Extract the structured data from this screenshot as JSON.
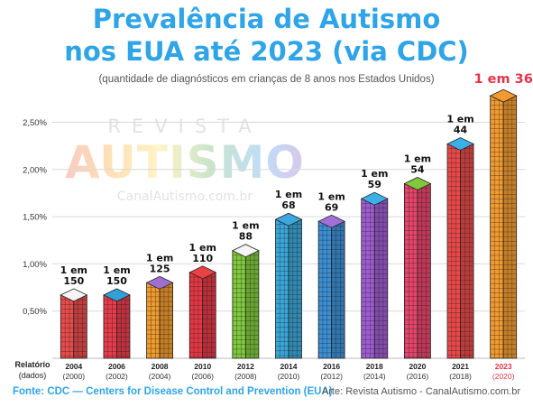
{
  "header": {
    "title_line1": "Prevalência de Autismo",
    "title_line2": "nos EUA até 2023 (via CDC)",
    "subtitle": "(quantidade de diagnósticos em crianças de 8 anos nos Estados Unidos)"
  },
  "watermark": {
    "top": "REVISTA",
    "logo": "AUTISMO",
    "url": "CanalAutismo.com.br"
  },
  "row_label": {
    "line1": "Relatório",
    "line2": "(dados)"
  },
  "footer": {
    "source": "Fonte: CDC — Centers for Disease Control and Prevention (EUA)",
    "credit": "Arte: Revista Autismo - CanalAutismo.com.br"
  },
  "colors": {
    "title": "#2fa4e7",
    "highlight": "#e5334b"
  },
  "chart_data": {
    "type": "bar",
    "categories": [
      "2004",
      "2006",
      "2008",
      "2010",
      "2012",
      "2014",
      "2016",
      "2018",
      "2020",
      "2021",
      "2023"
    ],
    "data_years": [
      "(2000)",
      "(2002)",
      "(2004)",
      "(2006)",
      "(2008)",
      "(2010)",
      "(2012)",
      "(2014)",
      "(2016)",
      "(2018)",
      "(2020)"
    ],
    "value_labels": [
      "1 em\n150",
      "1 em\n150",
      "1 em\n125",
      "1 em\n110",
      "1 em\n88",
      "1 em\n68",
      "1 em\n69",
      "1 em\n59",
      "1 em\n54",
      "1 em\n44",
      "1 em 36"
    ],
    "values": [
      0.67,
      0.67,
      0.8,
      0.91,
      1.14,
      1.47,
      1.45,
      1.69,
      1.85,
      2.27,
      2.78
    ],
    "bar_colors": [
      "#e94a4a",
      "#e83a4a",
      "#f09a2c",
      "#e43744",
      "#7fc93b",
      "#39a7d8",
      "#3b8fd4",
      "#9e5cd0",
      "#e8436b",
      "#e84848",
      "#f29a2e"
    ],
    "top_colors": [
      "#f5f5f5",
      "#2fa0d8",
      "#a070d0",
      "#e84242",
      "#f5f5f5",
      "#3fa7e0",
      "#a36fd8",
      "#3bb0e8",
      "#7fc93b",
      "#3bb0e8",
      "#f29a2e"
    ],
    "highlight_index": 10,
    "yticks": [
      "0,50%",
      "1,00%",
      "1,50%",
      "2,00%",
      "2,50%"
    ],
    "ytick_values": [
      0.5,
      1.0,
      1.5,
      2.0,
      2.5
    ],
    "ylim": [
      0,
      2.6
    ],
    "grid": true
  }
}
